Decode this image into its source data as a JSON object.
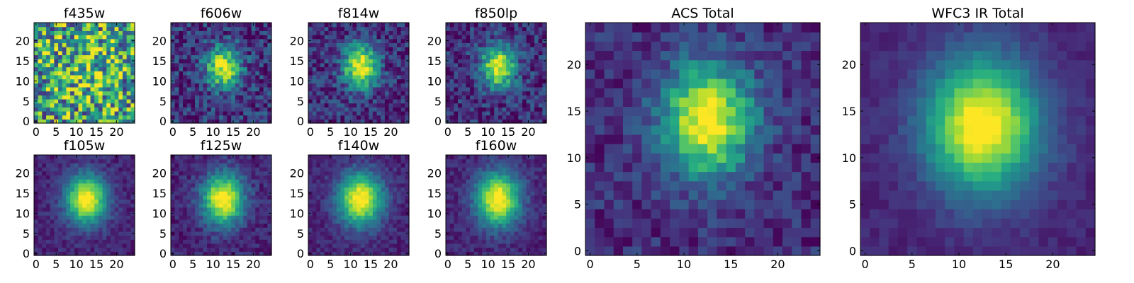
{
  "chart_data": [
    {
      "type": "heatmap",
      "title": "f435w",
      "xlim": [
        0,
        24
      ],
      "ylim": [
        0,
        24
      ],
      "center": [
        12.5,
        13.5
      ],
      "noise": 0.55,
      "peak": 0.15,
      "sigma": [
        6.0,
        6.0
      ],
      "xticks": [
        0,
        5,
        10,
        15,
        20
      ],
      "yticks": [
        0,
        5,
        10,
        15,
        20
      ],
      "grid": false
    },
    {
      "type": "heatmap",
      "title": "f606w",
      "xlim": [
        0,
        24
      ],
      "ylim": [
        0,
        24
      ],
      "center": [
        12.5,
        13.5
      ],
      "noise": 0.25,
      "peak": 0.8,
      "sigma": [
        3.0,
        3.6
      ],
      "xticks": [
        0,
        5,
        10,
        15,
        20
      ],
      "yticks": [
        0,
        5,
        10,
        15,
        20
      ],
      "grid": false
    },
    {
      "type": "heatmap",
      "title": "f814w",
      "xlim": [
        0,
        24
      ],
      "ylim": [
        0,
        24
      ],
      "center": [
        12.5,
        13.5
      ],
      "noise": 0.22,
      "peak": 0.85,
      "sigma": [
        3.0,
        3.8
      ],
      "xticks": [
        0,
        5,
        10,
        15,
        20
      ],
      "yticks": [
        0,
        5,
        10,
        15,
        20
      ],
      "grid": false
    },
    {
      "type": "heatmap",
      "title": "f850lp",
      "xlim": [
        0,
        24
      ],
      "ylim": [
        0,
        24
      ],
      "center": [
        12.5,
        13.5
      ],
      "noise": 0.22,
      "peak": 0.85,
      "sigma": [
        3.0,
        3.6
      ],
      "xticks": [
        0,
        5,
        10,
        15,
        20
      ],
      "yticks": [
        0,
        5,
        10,
        15,
        20
      ],
      "grid": false
    },
    {
      "type": "heatmap",
      "title": "f105w",
      "xlim": [
        0,
        24
      ],
      "ylim": [
        0,
        24
      ],
      "center": [
        12.5,
        13.5
      ],
      "noise": 0.1,
      "peak": 0.95,
      "sigma": [
        3.5,
        4.2
      ],
      "xticks": [
        0,
        5,
        10,
        15,
        20
      ],
      "yticks": [
        0,
        5,
        10,
        15,
        20
      ],
      "grid": false
    },
    {
      "type": "heatmap",
      "title": "f125w",
      "xlim": [
        0,
        24
      ],
      "ylim": [
        0,
        24
      ],
      "center": [
        12.5,
        13.5
      ],
      "noise": 0.12,
      "peak": 0.95,
      "sigma": [
        3.6,
        4.4
      ],
      "xticks": [
        0,
        5,
        10,
        15,
        20
      ],
      "yticks": [
        0,
        5,
        10,
        15,
        20
      ],
      "grid": false
    },
    {
      "type": "heatmap",
      "title": "f140w",
      "xlim": [
        0,
        24
      ],
      "ylim": [
        0,
        24
      ],
      "center": [
        12.5,
        13.5
      ],
      "noise": 0.1,
      "peak": 0.95,
      "sigma": [
        3.8,
        4.5
      ],
      "xticks": [
        0,
        5,
        10,
        15,
        20
      ],
      "yticks": [
        0,
        5,
        10,
        15,
        20
      ],
      "grid": false
    },
    {
      "type": "heatmap",
      "title": "f160w",
      "xlim": [
        0,
        24
      ],
      "ylim": [
        0,
        24
      ],
      "center": [
        12.5,
        13.5
      ],
      "noise": 0.1,
      "peak": 0.95,
      "sigma": [
        3.8,
        4.6
      ],
      "xticks": [
        0,
        5,
        10,
        15,
        20
      ],
      "yticks": [
        0,
        5,
        10,
        15,
        20
      ],
      "grid": false
    },
    {
      "type": "heatmap",
      "title": "ACS Total",
      "xlim": [
        0,
        24
      ],
      "ylim": [
        0,
        24
      ],
      "center": [
        12.5,
        14.0
      ],
      "noise": 0.15,
      "peak": 0.9,
      "sigma": [
        3.4,
        4.2
      ],
      "xticks": [
        0,
        5,
        10,
        15,
        20
      ],
      "yticks": [
        0,
        5,
        10,
        15,
        20
      ],
      "grid": false
    },
    {
      "type": "heatmap",
      "title": "WFC3 IR Total",
      "xlim": [
        0,
        24
      ],
      "ylim": [
        0,
        24
      ],
      "center": [
        12.5,
        13.5
      ],
      "noise": 0.06,
      "peak": 0.95,
      "sigma": [
        4.2,
        5.0
      ],
      "xticks": [
        0,
        5,
        10,
        15,
        20
      ],
      "yticks": [
        0,
        5,
        10,
        15,
        20
      ],
      "grid": false
    }
  ],
  "colormap": [
    "#440154",
    "#472d7b",
    "#3b528b",
    "#2c728e",
    "#21918c",
    "#28ae80",
    "#5ec962",
    "#addc30",
    "#fde725"
  ]
}
